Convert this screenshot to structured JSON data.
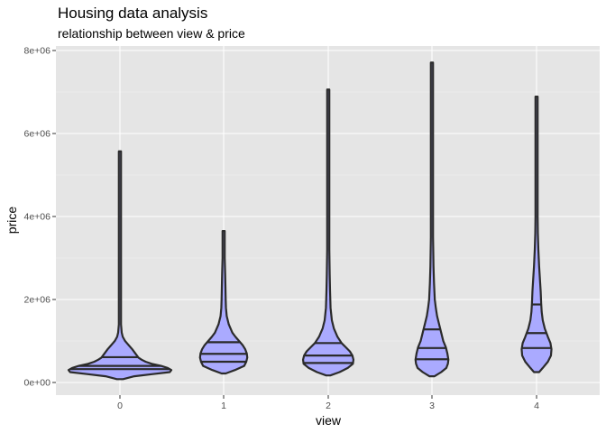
{
  "chart_data": {
    "type": "violin",
    "title": "Housing data analysis",
    "subtitle": "relationship between view & price",
    "xlabel": "view",
    "ylabel": "price",
    "categories": [
      "0",
      "1",
      "2",
      "3",
      "4"
    ],
    "y_ticks": [
      0,
      2000000,
      4000000,
      6000000,
      8000000
    ],
    "y_tick_labels": [
      "0e+00",
      "2e+06",
      "4e+06",
      "6e+06",
      "8e+06"
    ],
    "ylim": [
      -300000,
      8200000
    ],
    "grid": true,
    "fill_color": "#aaaaff",
    "outline_color": "#2b2b2b",
    "panel_color": "#e5e5e5",
    "violins": [
      {
        "category": "0",
        "min": 80000,
        "max": 5570000,
        "quantiles": [
          322000,
          400000,
          610000
        ],
        "profile": [
          [
            80000,
            0.06
          ],
          [
            150000,
            0.28
          ],
          [
            200000,
            0.62
          ],
          [
            250000,
            0.97
          ],
          [
            300000,
            1.0
          ],
          [
            350000,
            0.93
          ],
          [
            400000,
            0.8
          ],
          [
            450000,
            0.62
          ],
          [
            500000,
            0.5
          ],
          [
            550000,
            0.42
          ],
          [
            600000,
            0.36
          ],
          [
            700000,
            0.3
          ],
          [
            800000,
            0.24
          ],
          [
            900000,
            0.17
          ],
          [
            1000000,
            0.1
          ],
          [
            1100000,
            0.055
          ],
          [
            1200000,
            0.035
          ],
          [
            1400000,
            0.02
          ],
          [
            1600000,
            0.015
          ],
          [
            2000000,
            0.012
          ],
          [
            3000000,
            0.009
          ],
          [
            4000000,
            0.008
          ],
          [
            5000000,
            0.007
          ],
          [
            5570000,
            0.006
          ]
        ]
      },
      {
        "category": "1",
        "min": 217000,
        "max": 3650000,
        "quantiles": [
          500000,
          690000,
          970000
        ],
        "profile": [
          [
            217000,
            0.04
          ],
          [
            300000,
            0.22
          ],
          [
            400000,
            0.4
          ],
          [
            500000,
            0.44
          ],
          [
            600000,
            0.46
          ],
          [
            700000,
            0.45
          ],
          [
            800000,
            0.42
          ],
          [
            900000,
            0.37
          ],
          [
            1000000,
            0.3
          ],
          [
            1100000,
            0.23
          ],
          [
            1200000,
            0.17
          ],
          [
            1400000,
            0.1
          ],
          [
            1600000,
            0.06
          ],
          [
            1800000,
            0.045
          ],
          [
            2000000,
            0.04
          ],
          [
            2300000,
            0.035
          ],
          [
            2600000,
            0.03
          ],
          [
            3000000,
            0.02
          ],
          [
            3300000,
            0.015
          ],
          [
            3650000,
            0.008
          ]
        ]
      },
      {
        "category": "2",
        "min": 170000,
        "max": 7060000,
        "quantiles": [
          470000,
          650000,
          950000
        ],
        "profile": [
          [
            170000,
            0.04
          ],
          [
            250000,
            0.22
          ],
          [
            350000,
            0.38
          ],
          [
            450000,
            0.48
          ],
          [
            550000,
            0.49
          ],
          [
            650000,
            0.47
          ],
          [
            750000,
            0.42
          ],
          [
            850000,
            0.34
          ],
          [
            950000,
            0.26
          ],
          [
            1100000,
            0.18
          ],
          [
            1300000,
            0.11
          ],
          [
            1500000,
            0.07
          ],
          [
            1800000,
            0.045
          ],
          [
            2200000,
            0.035
          ],
          [
            2600000,
            0.028
          ],
          [
            3200000,
            0.02
          ],
          [
            4000000,
            0.014
          ],
          [
            5000000,
            0.01
          ],
          [
            6000000,
            0.008
          ],
          [
            7060000,
            0.006
          ]
        ]
      },
      {
        "category": "3",
        "min": 150000,
        "max": 7710000,
        "quantiles": [
          560000,
          830000,
          1280000
        ],
        "profile": [
          [
            150000,
            0.05
          ],
          [
            250000,
            0.18
          ],
          [
            350000,
            0.28
          ],
          [
            450000,
            0.31
          ],
          [
            550000,
            0.32
          ],
          [
            700000,
            0.3
          ],
          [
            850000,
            0.27
          ],
          [
            1000000,
            0.22
          ],
          [
            1200000,
            0.18
          ],
          [
            1400000,
            0.14
          ],
          [
            1600000,
            0.1
          ],
          [
            1800000,
            0.075
          ],
          [
            2000000,
            0.055
          ],
          [
            2400000,
            0.04
          ],
          [
            2800000,
            0.03
          ],
          [
            3500000,
            0.02
          ],
          [
            4500000,
            0.014
          ],
          [
            5500000,
            0.011
          ],
          [
            6500000,
            0.009
          ],
          [
            7710000,
            0.006
          ]
        ]
      },
      {
        "category": "4",
        "min": 250000,
        "max": 6890000,
        "quantiles": [
          830000,
          1190000,
          1880000
        ],
        "profile": [
          [
            250000,
            0.05
          ],
          [
            350000,
            0.12
          ],
          [
            500000,
            0.22
          ],
          [
            650000,
            0.28
          ],
          [
            800000,
            0.29
          ],
          [
            950000,
            0.27
          ],
          [
            1100000,
            0.22
          ],
          [
            1300000,
            0.16
          ],
          [
            1500000,
            0.12
          ],
          [
            1700000,
            0.1
          ],
          [
            1900000,
            0.09
          ],
          [
            2200000,
            0.08
          ],
          [
            2500000,
            0.065
          ],
          [
            2800000,
            0.05
          ],
          [
            3200000,
            0.035
          ],
          [
            3600000,
            0.025
          ],
          [
            4000000,
            0.018
          ],
          [
            5000000,
            0.012
          ],
          [
            6000000,
            0.009
          ],
          [
            6890000,
            0.006
          ]
        ]
      }
    ]
  }
}
